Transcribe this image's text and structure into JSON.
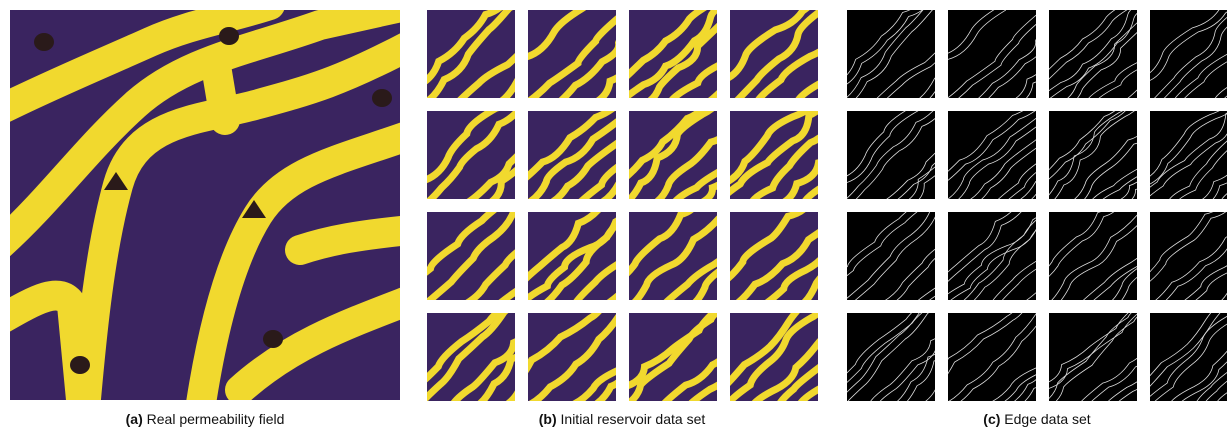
{
  "panels": [
    {
      "label": "(a)",
      "caption": "Real permeability field"
    },
    {
      "label": "(b)",
      "caption": "Initial reservoir data set"
    },
    {
      "label": "(c)",
      "caption": "Edge data set"
    }
  ]
}
